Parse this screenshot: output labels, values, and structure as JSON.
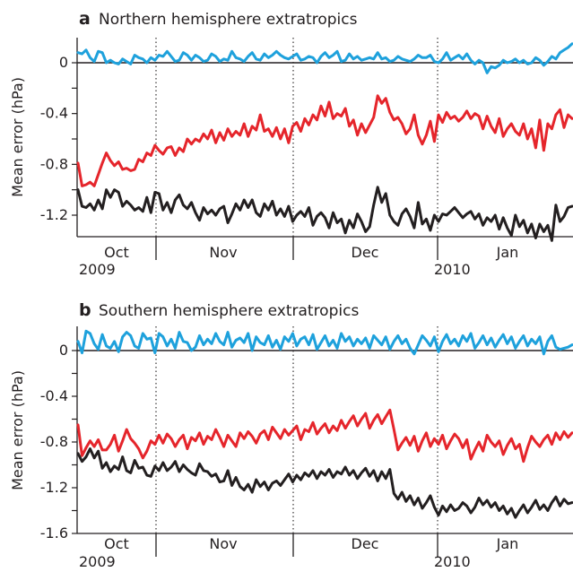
{
  "chart_data": [
    {
      "type": "line",
      "panel_letter": "a",
      "title": "Northern hemisphere extratropics",
      "ylabel": "Mean error (hPa)",
      "ylim": [
        -1.4,
        0.2
      ],
      "yticks": [
        0,
        -0.2,
        -0.4,
        -0.6,
        -0.8,
        -1.0,
        -1.2
      ],
      "ytick_labels": [
        "0",
        "",
        "-0.4",
        "",
        "-0.8",
        "",
        "-1.2"
      ],
      "x_labels": [
        {
          "label": "Oct",
          "sub": "2009"
        },
        {
          "label": "Nov",
          "sub": ""
        },
        {
          "label": "Dec",
          "sub": ""
        },
        {
          "label": "Jan",
          "sub": "2010"
        }
      ],
      "zero_line": true,
      "month_dividers": "dotted",
      "series": [
        {
          "color": "#1ea1dc",
          "values": [
            0.08,
            0.07,
            0.1,
            0.04,
            0.01,
            0.09,
            0.08,
            0.0,
            0.02,
            0.0,
            -0.01,
            0.03,
            0.01,
            -0.01,
            0.06,
            0.04,
            0.03,
            0.0,
            0.04,
            0.02,
            0.06,
            0.05,
            0.09,
            0.05,
            0.01,
            0.02,
            0.08,
            0.06,
            0.02,
            0.06,
            0.04,
            0.01,
            0.02,
            0.07,
            0.05,
            0.01,
            0.03,
            0.02,
            0.09,
            0.04,
            0.03,
            0.01,
            0.05,
            0.08,
            0.03,
            0.02,
            0.07,
            0.04,
            0.06,
            0.09,
            0.06,
            0.04,
            0.03,
            0.05,
            0.07,
            0.02,
            0.03,
            0.05,
            0.04,
            0.0,
            0.05,
            0.08,
            0.04,
            0.06,
            0.09,
            0.01,
            0.02,
            0.07,
            0.03,
            0.05,
            0.02,
            0.03,
            0.04,
            0.03,
            0.08,
            0.03,
            0.04,
            0.01,
            0.02,
            0.05,
            0.03,
            0.02,
            0.01,
            0.03,
            0.06,
            0.04,
            0.04,
            0.06,
            0.01,
            0.0,
            0.03,
            0.08,
            0.02,
            0.04,
            0.06,
            0.03,
            0.07,
            0.02,
            -0.01,
            0.02,
            0.0,
            -0.08,
            -0.03,
            -0.04,
            -0.02,
            0.02,
            0.0,
            0.01,
            0.03,
            0.0,
            0.02,
            -0.01,
            0.0,
            0.04,
            0.02,
            -0.02,
            0.01,
            0.05,
            0.03,
            0.08,
            0.1,
            0.12,
            0.15
          ]
        },
        {
          "color": "#e5252b",
          "values": [
            -0.79,
            -0.97,
            -0.96,
            -0.94,
            -0.97,
            -0.88,
            -0.79,
            -0.71,
            -0.77,
            -0.81,
            -0.78,
            -0.84,
            -0.83,
            -0.85,
            -0.84,
            -0.76,
            -0.78,
            -0.71,
            -0.73,
            -0.65,
            -0.69,
            -0.72,
            -0.67,
            -0.66,
            -0.73,
            -0.67,
            -0.7,
            -0.6,
            -0.64,
            -0.6,
            -0.62,
            -0.56,
            -0.6,
            -0.53,
            -0.63,
            -0.55,
            -0.61,
            -0.52,
            -0.58,
            -0.54,
            -0.57,
            -0.48,
            -0.58,
            -0.5,
            -0.53,
            -0.41,
            -0.54,
            -0.52,
            -0.58,
            -0.51,
            -0.6,
            -0.52,
            -0.63,
            -0.5,
            -0.47,
            -0.54,
            -0.44,
            -0.49,
            -0.41,
            -0.45,
            -0.34,
            -0.42,
            -0.31,
            -0.44,
            -0.4,
            -0.42,
            -0.36,
            -0.5,
            -0.45,
            -0.57,
            -0.48,
            -0.55,
            -0.49,
            -0.43,
            -0.26,
            -0.32,
            -0.28,
            -0.39,
            -0.45,
            -0.43,
            -0.48,
            -0.56,
            -0.52,
            -0.41,
            -0.57,
            -0.64,
            -0.57,
            -0.46,
            -0.62,
            -0.41,
            -0.47,
            -0.39,
            -0.44,
            -0.42,
            -0.46,
            -0.43,
            -0.38,
            -0.44,
            -0.4,
            -0.42,
            -0.52,
            -0.42,
            -0.5,
            -0.55,
            -0.44,
            -0.58,
            -0.52,
            -0.48,
            -0.54,
            -0.57,
            -0.48,
            -0.6,
            -0.52,
            -0.67,
            -0.45,
            -0.69,
            -0.48,
            -0.52,
            -0.41,
            -0.37,
            -0.51,
            -0.41,
            -0.44
          ]
        },
        {
          "color": "#231f20",
          "values": [
            -1.0,
            -1.13,
            -1.14,
            -1.11,
            -1.16,
            -1.08,
            -1.15,
            -1.0,
            -1.06,
            -1.0,
            -1.02,
            -1.13,
            -1.09,
            -1.12,
            -1.16,
            -1.14,
            -1.17,
            -1.06,
            -1.18,
            -1.02,
            -1.03,
            -1.16,
            -1.1,
            -1.18,
            -1.08,
            -1.04,
            -1.12,
            -1.15,
            -1.1,
            -1.18,
            -1.24,
            -1.14,
            -1.19,
            -1.16,
            -1.2,
            -1.15,
            -1.13,
            -1.26,
            -1.19,
            -1.11,
            -1.16,
            -1.08,
            -1.14,
            -1.08,
            -1.18,
            -1.21,
            -1.11,
            -1.16,
            -1.09,
            -1.2,
            -1.15,
            -1.21,
            -1.13,
            -1.25,
            -1.2,
            -1.17,
            -1.21,
            -1.14,
            -1.28,
            -1.21,
            -1.18,
            -1.22,
            -1.3,
            -1.18,
            -1.26,
            -1.23,
            -1.34,
            -1.24,
            -1.3,
            -1.19,
            -1.25,
            -1.33,
            -1.29,
            -1.12,
            -0.98,
            -1.1,
            -1.03,
            -1.2,
            -1.25,
            -1.28,
            -1.19,
            -1.15,
            -1.21,
            -1.3,
            -1.1,
            -1.27,
            -1.23,
            -1.32,
            -1.2,
            -1.25,
            -1.19,
            -1.2,
            -1.17,
            -1.14,
            -1.18,
            -1.22,
            -1.19,
            -1.17,
            -1.23,
            -1.19,
            -1.28,
            -1.22,
            -1.25,
            -1.2,
            -1.31,
            -1.22,
            -1.3,
            -1.36,
            -1.2,
            -1.29,
            -1.24,
            -1.34,
            -1.27,
            -1.38,
            -1.27,
            -1.33,
            -1.28,
            -1.4,
            -1.12,
            -1.25,
            -1.21,
            -1.14,
            -1.13
          ]
        }
      ]
    },
    {
      "type": "line",
      "panel_letter": "b",
      "title": "Southern hemisphere extratropics",
      "ylabel": "Mean error (hPa)",
      "ylim": [
        -1.6,
        0.2
      ],
      "yticks": [
        0,
        -0.2,
        -0.4,
        -0.6,
        -0.8,
        -1.0,
        -1.2,
        -1.4,
        -1.6
      ],
      "ytick_labels": [
        "0",
        "",
        "-0.4",
        "",
        "-0.8",
        "",
        "-1.2",
        "",
        "-1.6"
      ],
      "x_labels": [
        {
          "label": "Oct",
          "sub": "2009"
        },
        {
          "label": "Nov",
          "sub": ""
        },
        {
          "label": "Dec",
          "sub": ""
        },
        {
          "label": "Jan",
          "sub": "2010"
        }
      ],
      "zero_line": true,
      "month_dividers": "dotted",
      "series": [
        {
          "color": "#1ea1dc",
          "values": [
            0.08,
            -0.02,
            0.17,
            0.15,
            0.06,
            0.01,
            0.14,
            0.04,
            0.02,
            0.08,
            -0.01,
            0.12,
            0.16,
            0.13,
            0.04,
            0.02,
            0.15,
            0.1,
            0.11,
            -0.02,
            0.15,
            0.12,
            0.04,
            0.1,
            0.02,
            0.16,
            0.08,
            0.07,
            0.0,
            0.03,
            0.13,
            0.05,
            0.1,
            0.06,
            0.15,
            0.08,
            0.05,
            0.16,
            0.03,
            0.09,
            0.11,
            0.07,
            0.15,
            0.0,
            0.12,
            0.07,
            0.05,
            0.13,
            0.03,
            0.09,
            0.01,
            0.12,
            0.08,
            0.15,
            0.04,
            0.1,
            0.12,
            0.05,
            0.14,
            0.01,
            0.07,
            0.13,
            0.04,
            0.09,
            0.02,
            0.15,
            0.08,
            0.12,
            0.04,
            0.1,
            0.06,
            0.11,
            0.02,
            0.13,
            0.09,
            0.05,
            0.12,
            0.01,
            0.08,
            0.13,
            0.06,
            0.1,
            0.02,
            -0.03,
            0.05,
            0.13,
            0.09,
            0.04,
            0.12,
            -0.01,
            0.08,
            0.14,
            0.06,
            0.1,
            0.04,
            0.13,
            0.08,
            0.15,
            0.02,
            0.07,
            0.13,
            0.05,
            0.11,
            0.03,
            0.09,
            0.14,
            0.06,
            0.12,
            0.02,
            0.08,
            0.13,
            0.04,
            0.1,
            0.06,
            0.12,
            -0.03,
            0.08,
            0.13,
            0.03,
            0.01,
            0.02,
            0.03,
            0.05
          ]
        },
        {
          "color": "#e5252b",
          "values": [
            -0.65,
            -0.92,
            -0.85,
            -0.79,
            -0.84,
            -0.78,
            -0.87,
            -0.87,
            -0.82,
            -0.74,
            -0.88,
            -0.79,
            -0.69,
            -0.77,
            -0.81,
            -0.86,
            -0.94,
            -0.88,
            -0.79,
            -0.82,
            -0.74,
            -0.81,
            -0.73,
            -0.77,
            -0.84,
            -0.78,
            -0.74,
            -0.86,
            -0.76,
            -0.79,
            -0.72,
            -0.82,
            -0.75,
            -0.78,
            -0.69,
            -0.76,
            -0.84,
            -0.74,
            -0.79,
            -0.84,
            -0.72,
            -0.77,
            -0.71,
            -0.75,
            -0.81,
            -0.73,
            -0.7,
            -0.78,
            -0.67,
            -0.72,
            -0.77,
            -0.69,
            -0.74,
            -0.7,
            -0.66,
            -0.78,
            -0.69,
            -0.71,
            -0.63,
            -0.73,
            -0.68,
            -0.64,
            -0.72,
            -0.66,
            -0.7,
            -0.61,
            -0.68,
            -0.62,
            -0.57,
            -0.66,
            -0.6,
            -0.55,
            -0.68,
            -0.61,
            -0.56,
            -0.64,
            -0.58,
            -0.52,
            -0.69,
            -0.87,
            -0.81,
            -0.76,
            -0.83,
            -0.75,
            -0.88,
            -0.79,
            -0.72,
            -0.84,
            -0.77,
            -0.82,
            -0.74,
            -0.86,
            -0.79,
            -0.73,
            -0.77,
            -0.85,
            -0.78,
            -0.95,
            -0.87,
            -0.8,
            -0.88,
            -0.74,
            -0.8,
            -0.84,
            -0.79,
            -0.91,
            -0.83,
            -0.77,
            -0.86,
            -0.82,
            -0.97,
            -0.85,
            -0.75,
            -0.8,
            -0.84,
            -0.78,
            -0.74,
            -0.82,
            -0.72,
            -0.78,
            -0.71,
            -0.76,
            -0.72
          ]
        },
        {
          "color": "#231f20",
          "values": [
            -0.9,
            -0.97,
            -0.93,
            -0.86,
            -0.94,
            -0.88,
            -1.03,
            -0.98,
            -1.06,
            -1.01,
            -1.04,
            -0.93,
            -1.05,
            -1.07,
            -0.96,
            -1.03,
            -1.02,
            -1.09,
            -1.1,
            -1.01,
            -1.05,
            -0.98,
            -1.05,
            -1.02,
            -0.97,
            -1.06,
            -1.0,
            -1.04,
            -1.07,
            -1.09,
            -0.99,
            -1.05,
            -1.06,
            -1.1,
            -1.08,
            -1.15,
            -1.14,
            -1.05,
            -1.18,
            -1.11,
            -1.19,
            -1.22,
            -1.17,
            -1.24,
            -1.13,
            -1.19,
            -1.15,
            -1.22,
            -1.16,
            -1.14,
            -1.18,
            -1.13,
            -1.08,
            -1.15,
            -1.09,
            -1.13,
            -1.07,
            -1.1,
            -1.05,
            -1.12,
            -1.06,
            -1.09,
            -1.04,
            -1.11,
            -1.06,
            -1.08,
            -1.02,
            -1.09,
            -1.05,
            -1.12,
            -1.07,
            -1.03,
            -1.1,
            -1.05,
            -1.14,
            -1.06,
            -1.12,
            -1.04,
            -1.25,
            -1.3,
            -1.24,
            -1.32,
            -1.27,
            -1.35,
            -1.29,
            -1.38,
            -1.33,
            -1.27,
            -1.37,
            -1.44,
            -1.36,
            -1.41,
            -1.35,
            -1.4,
            -1.38,
            -1.33,
            -1.36,
            -1.42,
            -1.37,
            -1.29,
            -1.35,
            -1.31,
            -1.37,
            -1.33,
            -1.4,
            -1.36,
            -1.43,
            -1.38,
            -1.46,
            -1.4,
            -1.35,
            -1.42,
            -1.37,
            -1.31,
            -1.39,
            -1.35,
            -1.4,
            -1.33,
            -1.28,
            -1.36,
            -1.3,
            -1.34,
            -1.33
          ]
        }
      ]
    }
  ]
}
